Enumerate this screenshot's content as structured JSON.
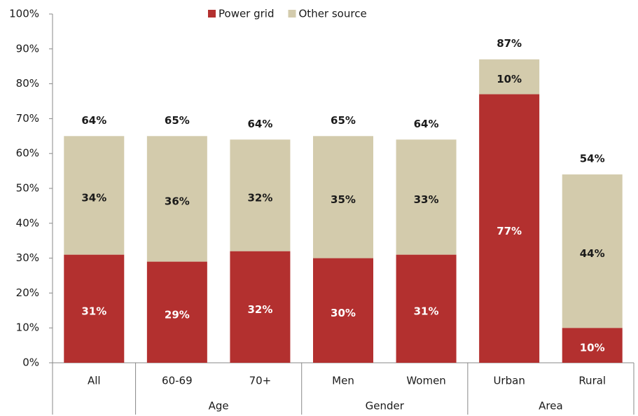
{
  "chart_data": {
    "type": "stacked_bar",
    "categories": [
      "All",
      "60-69",
      "70+",
      "Men",
      "Women",
      "Urban",
      "Rural"
    ],
    "groups": [
      {
        "name": "Age",
        "span": [
          1,
          2
        ]
      },
      {
        "name": "Gender",
        "span": [
          3,
          4
        ]
      },
      {
        "name": "Area",
        "span": [
          5,
          6
        ]
      }
    ],
    "series": [
      {
        "name": "Power grid",
        "color": "#b3302f",
        "label_color": "#ffffff",
        "values": [
          31,
          29,
          32,
          30,
          31,
          77,
          10
        ],
        "value_labels": [
          "31%",
          "29%",
          "32%",
          "30%",
          "31%",
          "77%",
          "10%"
        ]
      },
      {
        "name": "Other source",
        "color": "#d3cbac",
        "label_color": "#1a1a1a",
        "values": [
          34,
          36,
          32,
          35,
          33,
          10,
          44
        ],
        "value_labels": [
          "34%",
          "36%",
          "32%",
          "35%",
          "33%",
          "10%",
          "44%"
        ]
      }
    ],
    "totals": [
      64,
      65,
      64,
      65,
      64,
      87,
      54
    ],
    "total_labels": [
      "64%",
      "65%",
      "64%",
      "65%",
      "64%",
      "87%",
      "54%"
    ],
    "ylim": [
      0,
      100
    ],
    "yticks": [
      {
        "value": 0,
        "label": "0%"
      },
      {
        "value": 10,
        "label": "10%"
      },
      {
        "value": 20,
        "label": "20%"
      },
      {
        "value": 30,
        "label": "30%"
      },
      {
        "value": 40,
        "label": "40%"
      },
      {
        "value": 50,
        "label": "50%"
      },
      {
        "value": 60,
        "label": "60%"
      },
      {
        "value": 70,
        "label": "70%"
      },
      {
        "value": 80,
        "label": "80%"
      },
      {
        "value": 90,
        "label": "90%"
      },
      {
        "value": 100,
        "label": "100%"
      }
    ],
    "legend": "top",
    "grid": false
  }
}
